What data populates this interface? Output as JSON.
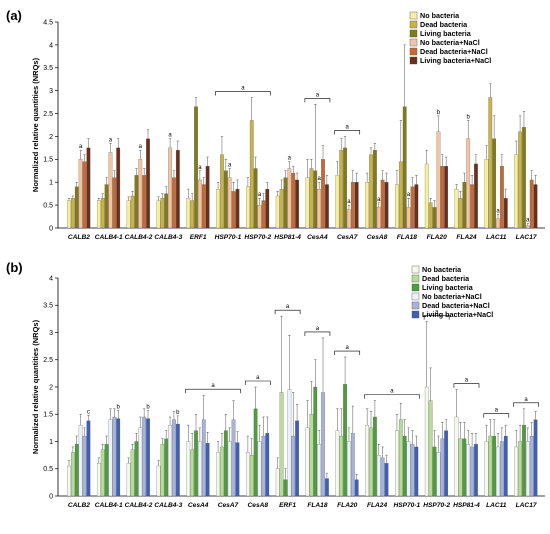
{
  "chart_data": [
    {
      "type": "bar",
      "panel_label": "(a)",
      "ylabel": "Normalized relative quantities (NRQs)",
      "ylim": [
        0,
        4.5
      ],
      "yticks": [
        "0",
        "0.5",
        "1",
        "1.5",
        "2",
        "2.5",
        "3",
        "3.5",
        "4",
        "4.5"
      ],
      "legend_position": "top-right",
      "categories": [
        "CALB2",
        "CALB4-1",
        "CALB4-2",
        "CALB4-3",
        "ERF1",
        "HSP70-1",
        "HSP70-2",
        "HSP81-4",
        "CesA4",
        "CesA7",
        "CesA8",
        "FLA18",
        "FLA20",
        "FLA24",
        "LAC11",
        "LAC17"
      ],
      "series": [
        {
          "name": "No bacteria",
          "color": "#f5f09a",
          "values": [
            0.6,
            0.6,
            0.6,
            0.6,
            0.65,
            0.85,
            0.9,
            0.7,
            1.1,
            1.15,
            1.0,
            0.95,
            1.4,
            0.85,
            1.5,
            1.6
          ],
          "errors": [
            0.05,
            0.05,
            0.08,
            0.08,
            0.2,
            0.15,
            0.2,
            0.1,
            0.4,
            0.3,
            0.2,
            0.3,
            0.3,
            0.1,
            0.3,
            0.3
          ]
        },
        {
          "name": "Dead bacteria",
          "color": "#c9b24a",
          "values": [
            0.65,
            0.65,
            0.7,
            0.65,
            0.6,
            1.6,
            2.35,
            0.85,
            1.3,
            1.7,
            1.6,
            1.45,
            0.55,
            0.65,
            2.85,
            2.1
          ],
          "errors": [
            0.05,
            0.1,
            0.1,
            0.1,
            0.15,
            0.4,
            0.5,
            0.2,
            0.2,
            0.25,
            0.15,
            0.9,
            0.1,
            0.15,
            0.3,
            0.35
          ]
        },
        {
          "name": "Living bacteria",
          "color": "#807a1a",
          "values": [
            0.9,
            0.95,
            1.15,
            0.75,
            2.65,
            1.25,
            1.3,
            1.1,
            1.25,
            1.75,
            1.7,
            2.65,
            0.45,
            1.0,
            1.95,
            2.2
          ],
          "errors": [
            0.1,
            0.15,
            0.15,
            0.15,
            0.2,
            0.25,
            0.25,
            0.15,
            1.45,
            0.25,
            0.15,
            1.35,
            0.15,
            0.2,
            0.5,
            0.35
          ]
        },
        {
          "name": "No bacteria+NaCl",
          "color": "#f2c4a4",
          "values": [
            1.5,
            1.65,
            1.5,
            1.75,
            1.05,
            1.1,
            0.5,
            1.3,
            0.85,
            0.4,
            0.45,
            0.45,
            2.1,
            1.95,
            0.2,
            0.05
          ],
          "errors": [
            0.2,
            0.2,
            0.2,
            0.2,
            0.2,
            0.2,
            0.15,
            0.15,
            0.15,
            0.1,
            0.1,
            0.2,
            0.35,
            0.4,
            0.1,
            0.05
          ],
          "sig": [
            "a",
            "a",
            "a",
            "a",
            "a",
            "a",
            "a",
            "a",
            "a",
            "a",
            "a",
            "a",
            "b",
            "b",
            "a",
            "a"
          ]
        },
        {
          "name": "Dead bacteria+NaCl",
          "color": "#c46a34",
          "values": [
            1.45,
            1.1,
            1.15,
            1.1,
            0.95,
            0.8,
            0.6,
            1.2,
            1.5,
            1.0,
            1.05,
            0.9,
            1.35,
            0.95,
            1.35,
            1.05
          ],
          "errors": [
            0.15,
            0.15,
            0.15,
            0.15,
            0.15,
            0.2,
            0.15,
            0.15,
            0.3,
            0.25,
            0.2,
            0.2,
            0.25,
            0.2,
            0.25,
            0.2
          ]
        },
        {
          "name": "Living bacteria+NaCl",
          "color": "#6a2e1a",
          "values": [
            1.75,
            1.75,
            1.95,
            1.7,
            1.35,
            0.85,
            0.85,
            1.05,
            0.95,
            1.0,
            1.0,
            0.95,
            1.35,
            1.4,
            0.65,
            0.95
          ],
          "errors": [
            0.2,
            0.2,
            0.2,
            0.2,
            0.2,
            0.2,
            0.15,
            0.15,
            0.2,
            0.2,
            0.2,
            0.2,
            0.2,
            0.2,
            0.2,
            0.2
          ]
        }
      ],
      "brackets": [
        {
          "from": "HSP70-1",
          "to": "HSP70-2",
          "label": "a"
        },
        {
          "from": "CesA4",
          "to": "CesA4",
          "label": "a"
        },
        {
          "from": "CesA7",
          "to": "CesA7",
          "label": "a"
        }
      ]
    },
    {
      "type": "bar",
      "panel_label": "(b)",
      "ylabel": "Normalized relative quantities (NRQs)",
      "ylim": [
        0,
        4
      ],
      "yticks": [
        "0",
        "0.5",
        "1",
        "1.5",
        "2",
        "2.5",
        "3",
        "3.5",
        "4"
      ],
      "legend_position": "top-right",
      "categories": [
        "CALB2",
        "CALB4-1",
        "CALB4-2",
        "CALB4-3",
        "CesA4",
        "CesA7",
        "CesA8",
        "ERF1",
        "FLA18",
        "FLA20",
        "FLA24",
        "HSP70-1",
        "HSP70-2",
        "HSP81-4",
        "LAC11",
        "LAC17"
      ],
      "series": [
        {
          "name": "No bacteria",
          "color": "#f4f9ee",
          "values": [
            0.55,
            0.6,
            0.6,
            0.55,
            1.0,
            0.8,
            0.8,
            0.5,
            1.25,
            1.2,
            1.3,
            1.2,
            2.0,
            1.45,
            1.0,
            0.9
          ],
          "errors": [
            0.1,
            0.1,
            0.1,
            0.1,
            0.3,
            0.2,
            0.3,
            0.2,
            0.5,
            0.4,
            0.3,
            0.3,
            1.2,
            0.5,
            0.3,
            0.3
          ]
        },
        {
          "name": "Dead bacteria",
          "color": "#b7dc98",
          "values": [
            0.8,
            0.85,
            0.85,
            0.95,
            0.85,
            0.9,
            0.75,
            1.9,
            1.5,
            1.1,
            1.25,
            1.4,
            1.75,
            1.05,
            1.1,
            1.0
          ],
          "errors": [
            0.1,
            0.1,
            0.1,
            0.1,
            0.3,
            0.25,
            0.3,
            1.4,
            0.6,
            0.5,
            0.3,
            0.3,
            0.6,
            0.3,
            0.3,
            0.3
          ]
        },
        {
          "name": "Living bacteria",
          "color": "#4e9c3c",
          "values": [
            0.95,
            0.95,
            1.0,
            1.05,
            1.2,
            1.2,
            1.6,
            0.3,
            2.0,
            2.05,
            1.45,
            1.1,
            0.9,
            1.05,
            1.1,
            1.3
          ],
          "errors": [
            0.15,
            0.15,
            0.15,
            0.15,
            0.3,
            0.3,
            0.4,
            0.2,
            0.5,
            0.5,
            0.3,
            0.3,
            0.3,
            0.3,
            0.3,
            0.3
          ]
        },
        {
          "name": "No bacteria+NaCl",
          "color": "#edf2f8",
          "values": [
            1.3,
            1.4,
            1.25,
            1.3,
            1.0,
            1.0,
            1.0,
            1.95,
            0.95,
            1.0,
            0.75,
            1.0,
            0.8,
            0.95,
            0.9,
            1.0
          ],
          "errors": [
            0.2,
            0.2,
            0.2,
            0.15,
            0.25,
            0.25,
            0.3,
            1.0,
            0.25,
            0.25,
            0.2,
            0.25,
            0.3,
            0.25,
            0.25,
            0.25
          ]
        },
        {
          "name": "Dead bacteria+NaCl",
          "color": "#a6b4da",
          "values": [
            1.1,
            1.45,
            1.45,
            1.4,
            1.4,
            1.4,
            1.1,
            1.1,
            1.9,
            1.15,
            0.7,
            0.95,
            1.05,
            0.9,
            1.0,
            1.1
          ],
          "errors": [
            0.15,
            0.15,
            0.15,
            0.15,
            0.45,
            0.35,
            0.35,
            0.8,
            1.0,
            0.5,
            0.2,
            0.25,
            0.3,
            0.25,
            0.25,
            0.25
          ]
        },
        {
          "name": "Living bacteria+NaCl",
          "color": "#3d5fb8",
          "values": [
            1.38,
            1.42,
            1.42,
            1.32,
            0.97,
            0.98,
            1.15,
            1.38,
            0.32,
            0.3,
            0.6,
            0.9,
            1.2,
            0.95,
            1.1,
            1.4
          ],
          "errors": [
            0.1,
            0.15,
            0.15,
            0.15,
            0.2,
            0.2,
            0.3,
            0.3,
            0.1,
            0.1,
            0.15,
            0.2,
            0.2,
            0.2,
            0.2,
            0.15
          ],
          "sig": [
            "c",
            "b",
            "b",
            "b",
            "",
            "",
            "",
            "",
            "",
            "",
            "",
            "",
            "",
            "",
            "",
            ""
          ]
        }
      ],
      "brackets": [
        {
          "from": "CesA4",
          "to": "CesA7",
          "label": "a"
        },
        {
          "from": "CesA8",
          "to": "CesA8",
          "label": "a"
        },
        {
          "from": "ERF1",
          "to": "ERF1",
          "label": "a"
        },
        {
          "from": "FLA18",
          "to": "FLA18",
          "label": "a"
        },
        {
          "from": "FLA20",
          "to": "FLA20",
          "label": "a"
        },
        {
          "from": "FLA24",
          "to": "HSP70-1",
          "label": "a"
        },
        {
          "from": "HSP70-2",
          "to": "HSP70-2",
          "label": "a"
        },
        {
          "from": "HSP81-4",
          "to": "HSP81-4",
          "label": "a"
        },
        {
          "from": "LAC11",
          "to": "LAC11",
          "label": "a"
        },
        {
          "from": "LAC17",
          "to": "LAC17",
          "label": "a"
        }
      ]
    }
  ]
}
